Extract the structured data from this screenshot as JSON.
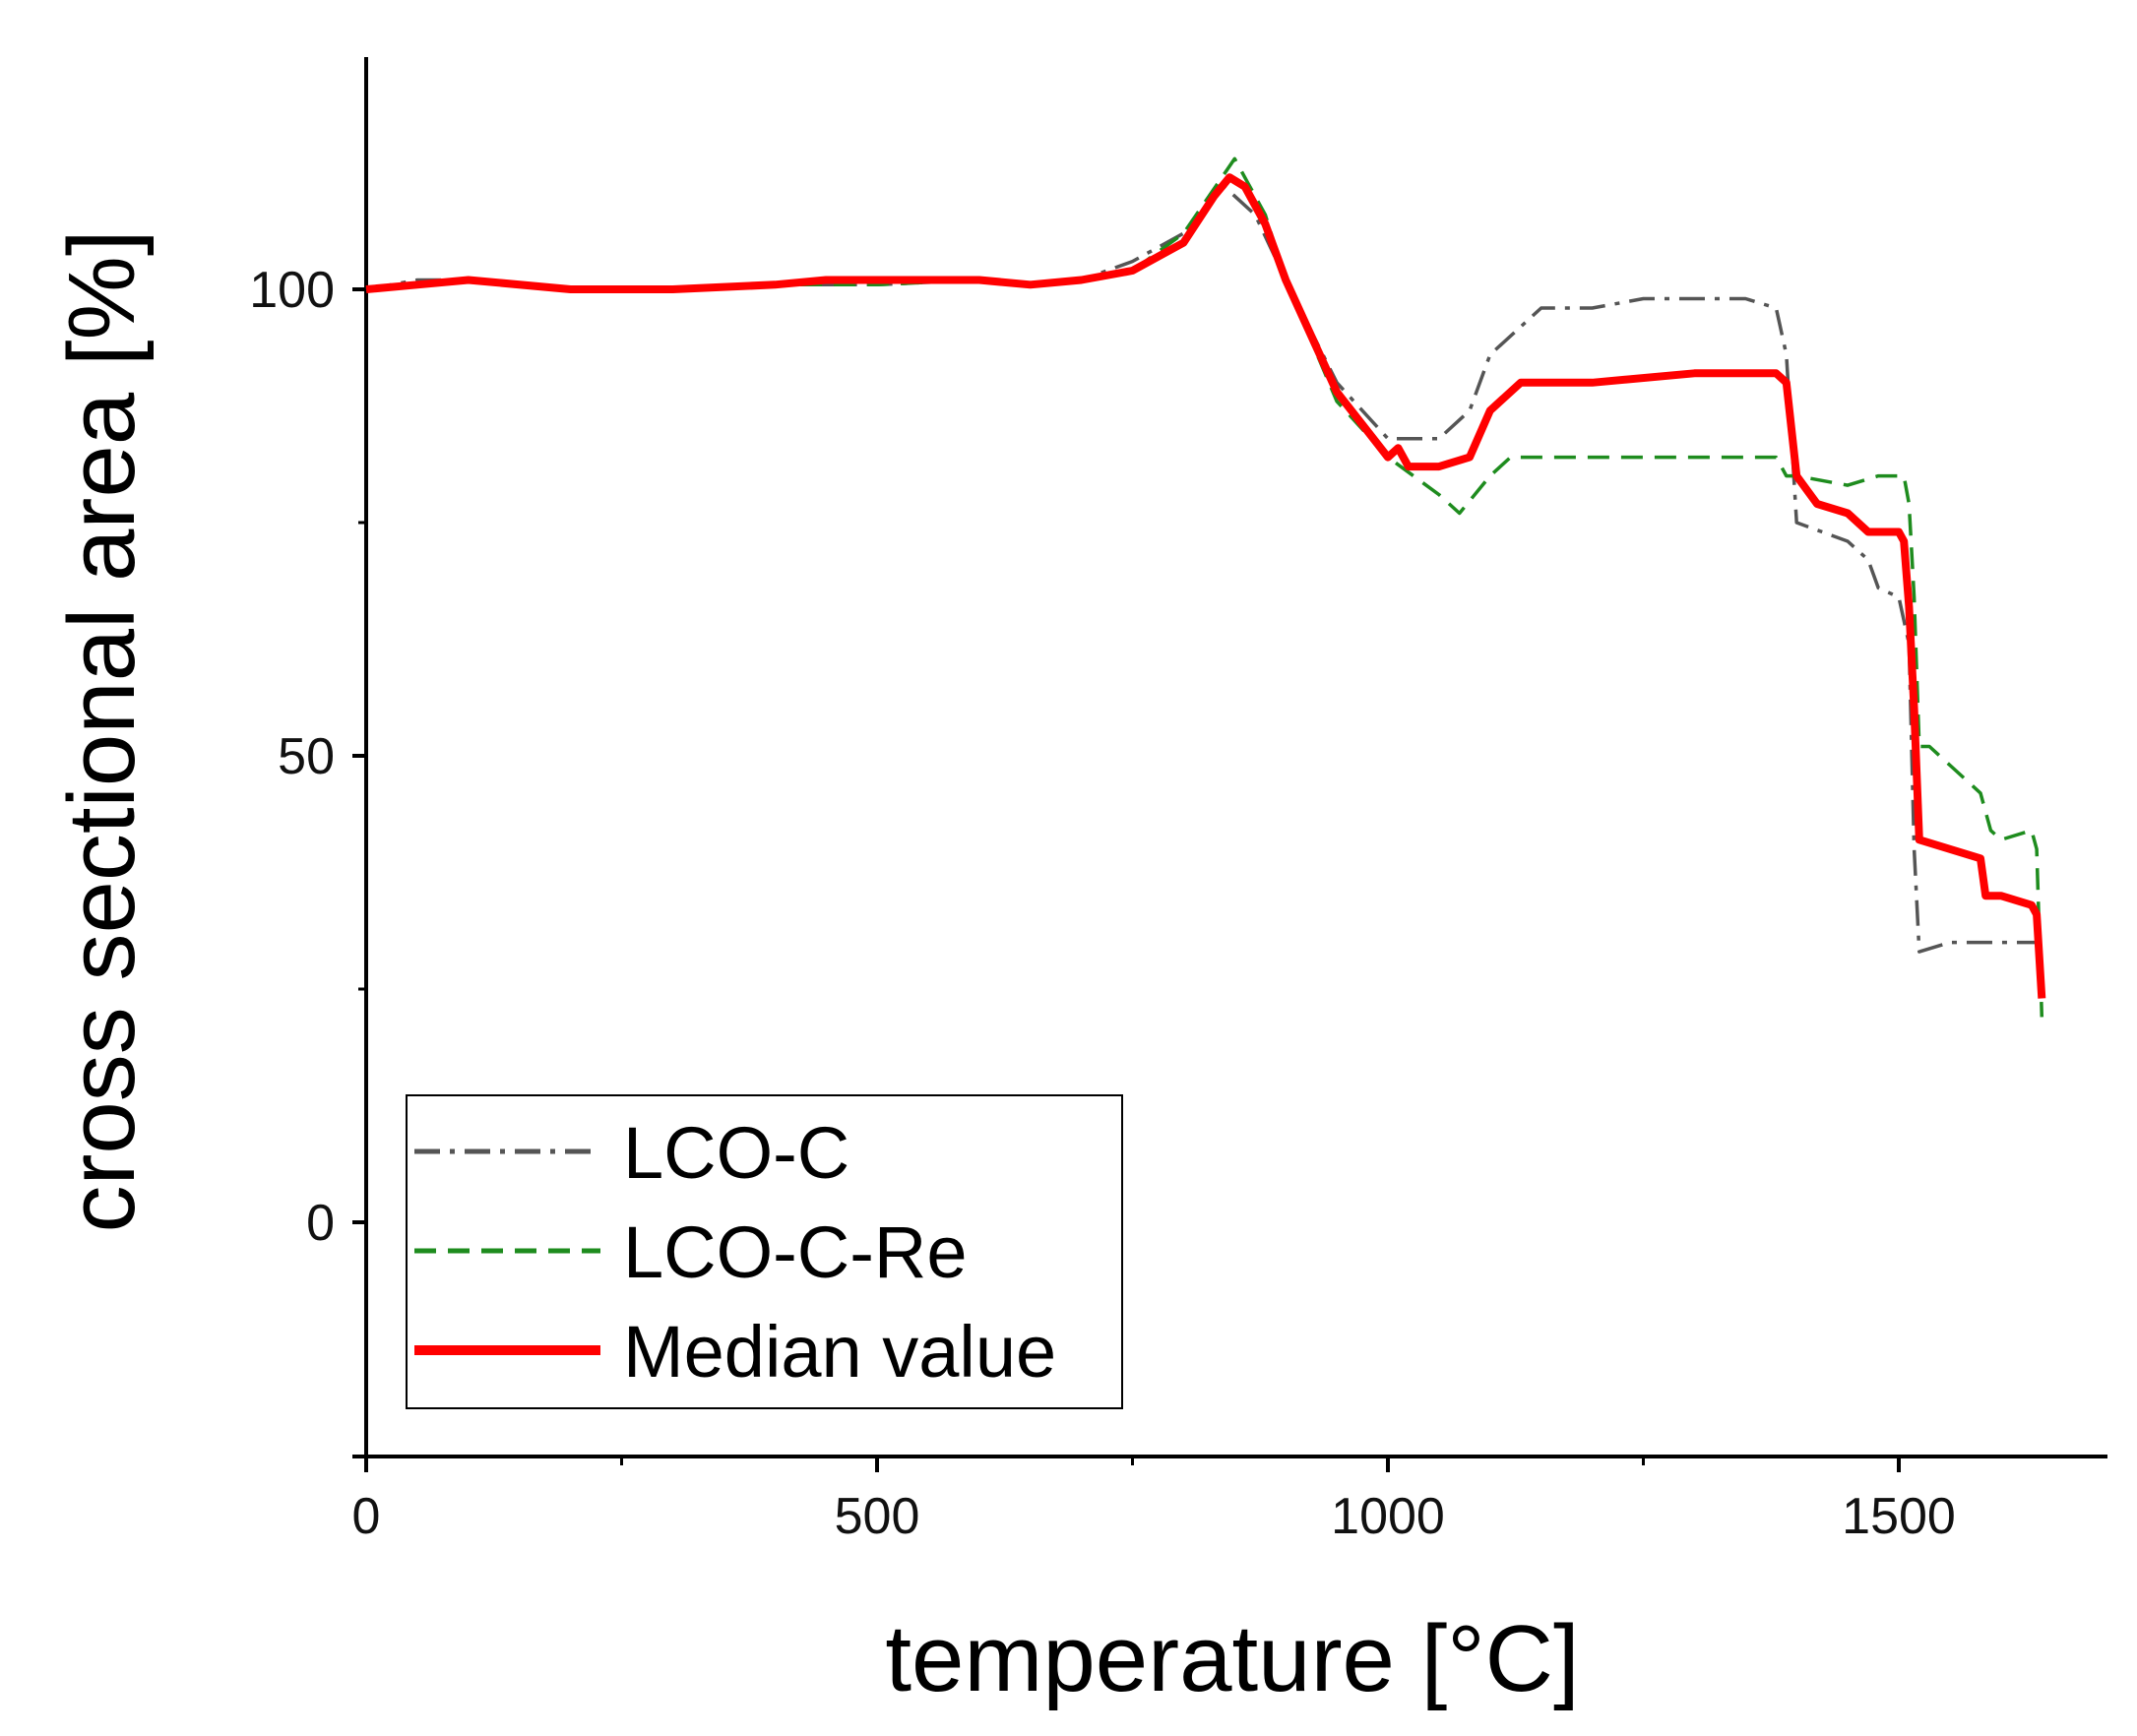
{
  "chart_data": {
    "type": "line",
    "title": "",
    "xlabel": "temperature [°C]",
    "ylabel": "cross sectional area [%]",
    "xlim": [
      0,
      1700
    ],
    "ylim": [
      -25,
      125
    ],
    "x_ticks": [
      0,
      500,
      1000,
      1500
    ],
    "x_tick_labels": [
      "0",
      "500",
      "1000",
      "1500"
    ],
    "y_ticks": [
      0,
      50,
      100
    ],
    "y_tick_labels": [
      "0",
      "50",
      "100"
    ],
    "legend_position": "bottom-left",
    "series": [
      {
        "name": "LCO-C",
        "color": "#555555",
        "dash": "dash-dot",
        "x": [
          0,
          50,
          100,
          200,
          300,
          400,
          500,
          600,
          650,
          700,
          750,
          800,
          840,
          870,
          900,
          950,
          1000,
          1050,
          1080,
          1100,
          1150,
          1200,
          1250,
          1300,
          1350,
          1380,
          1390,
          1400,
          1450,
          1470,
          1480,
          1500,
          1510,
          1515,
          1520,
          1550,
          1600,
          1640
        ],
        "y": [
          100,
          101,
          101,
          100,
          100,
          100.5,
          100.5,
          101,
          100.5,
          101,
          103,
          106,
          111,
          108,
          101,
          90,
          84,
          84,
          87,
          93,
          98,
          98,
          99,
          99,
          99,
          98,
          93,
          75,
          73,
          71,
          68,
          67,
          62,
          40,
          29,
          30,
          30,
          30
        ]
      },
      {
        "name": "LCO-C-Re",
        "color": "#1e8c1e",
        "dash": "dashed",
        "x": [
          0,
          50,
          100,
          200,
          300,
          400,
          500,
          600,
          650,
          700,
          750,
          800,
          850,
          880,
          900,
          950,
          1000,
          1050,
          1070,
          1100,
          1120,
          1200,
          1300,
          1380,
          1390,
          1400,
          1450,
          1480,
          1500,
          1505,
          1510,
          1515,
          1520,
          1530,
          1550,
          1580,
          1590,
          1600,
          1630,
          1635,
          1640
        ],
        "y": [
          100,
          100.5,
          101,
          100,
          100,
          100.5,
          100.5,
          101,
          100.5,
          101,
          102,
          106,
          114,
          108,
          101,
          88,
          82,
          78,
          76,
          80,
          82,
          82,
          82,
          82,
          80,
          80,
          79,
          80,
          80,
          80,
          77,
          67,
          51,
          51,
          49,
          46,
          42,
          41,
          42,
          40,
          22
        ]
      },
      {
        "name": "Median value",
        "color": "#ff0000",
        "dash": "solid",
        "x": [
          0,
          50,
          100,
          200,
          300,
          400,
          450,
          500,
          600,
          650,
          700,
          750,
          800,
          830,
          845,
          860,
          880,
          900,
          950,
          1000,
          1010,
          1020,
          1050,
          1080,
          1100,
          1130,
          1200,
          1300,
          1380,
          1390,
          1400,
          1420,
          1450,
          1470,
          1500,
          1505,
          1510,
          1515,
          1520,
          1550,
          1580,
          1585,
          1600,
          1630,
          1635,
          1640
        ],
        "y": [
          100,
          100.5,
          101,
          100,
          100,
          100.5,
          101,
          101,
          101,
          100.5,
          101,
          102,
          105,
          110,
          112,
          111,
          107,
          101,
          89,
          82,
          83,
          81,
          81,
          82,
          87,
          90,
          90,
          91,
          91,
          90,
          80,
          77,
          76,
          74,
          74,
          73,
          66,
          55,
          41,
          40,
          39,
          35,
          35,
          34,
          33,
          24
        ]
      }
    ]
  }
}
